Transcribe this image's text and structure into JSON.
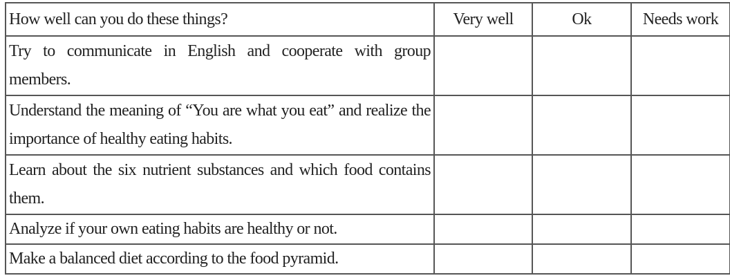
{
  "table": {
    "headers": [
      "How well can you do these things?",
      "Very well",
      "Ok",
      "Needs work"
    ],
    "rows": [
      "Try to communicate in English and cooperate with group members.",
      "Understand the meaning of “You are what you eat” and realize the importance of healthy eating habits.",
      "Learn about the six nutrient substances and which food contains them.",
      "Analyze if your own eating habits are healthy or not.",
      "Make a balanced diet according to the food pyramid."
    ]
  }
}
